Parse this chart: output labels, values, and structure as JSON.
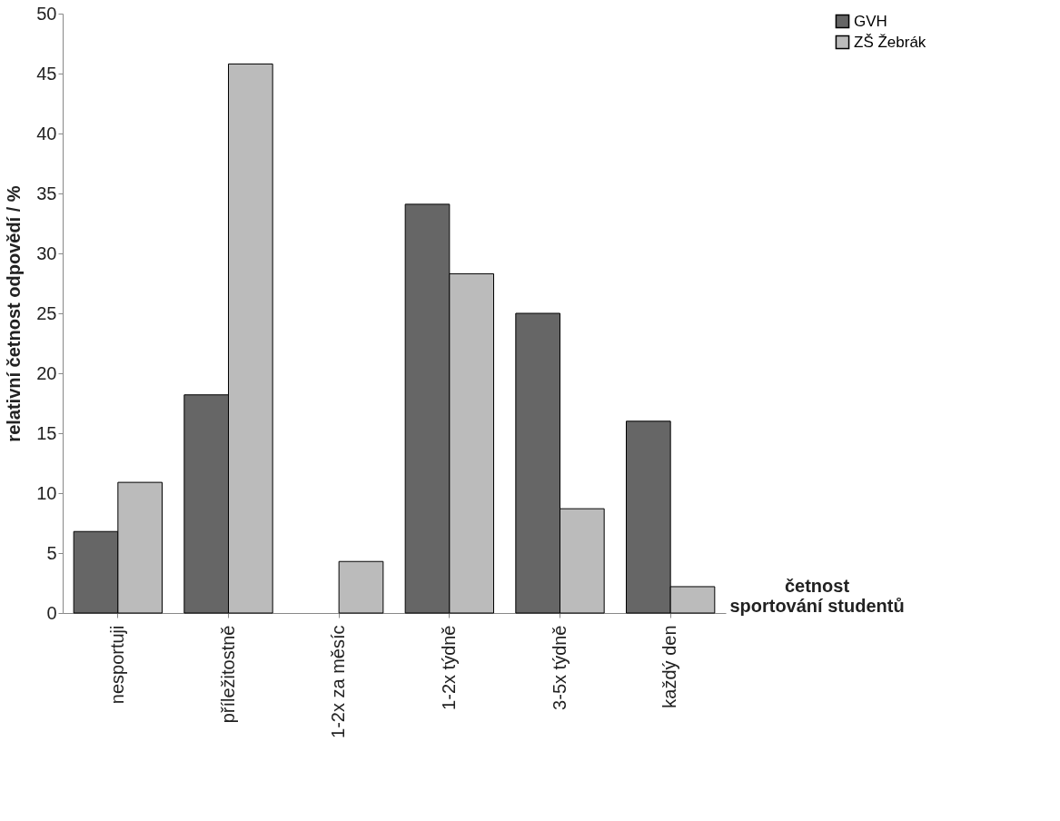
{
  "chart_data": {
    "type": "bar",
    "xlabel": "četnost\nsportování studentů",
    "ylabel": "relativní četnost odpovědí / %",
    "categories": [
      "nesportuji",
      "příležitostně",
      "1-2x za měsíc",
      "1-2x týdně",
      "3-5x týdně",
      "každý den"
    ],
    "series": [
      {
        "name": "GVH",
        "color": "#666666",
        "values": [
          6.8,
          18.2,
          0,
          34.1,
          25.0,
          16.0
        ]
      },
      {
        "name": "ZŠ Žebrák",
        "color": "#bbbbbb",
        "values": [
          10.9,
          45.8,
          4.3,
          28.3,
          8.7,
          2.2
        ]
      }
    ],
    "ylim": [
      0,
      50
    ],
    "yticks": [
      0,
      5,
      10,
      15,
      20,
      25,
      30,
      35,
      40,
      45,
      50
    ],
    "grid": false,
    "legend": "right"
  }
}
